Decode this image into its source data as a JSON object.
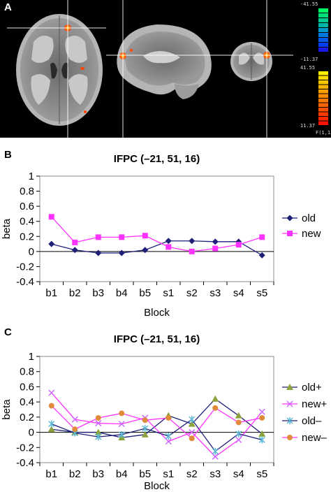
{
  "panel_a": {
    "letter": "A",
    "colorbar": {
      "neg_top_label": "-41.55",
      "neg_bottom_label": "-11.37",
      "pos_top_label": "41.55",
      "pos_bottom_label": "11.37",
      "stat_label": "F(1,13)",
      "neg_colors": [
        "#00ff66",
        "#00e07a",
        "#00c890",
        "#00b4a8",
        "#0096c8",
        "#0078dc",
        "#005ae6",
        "#003cf0",
        "#1a1ae6"
      ],
      "pos_colors": [
        "#fff000",
        "#ffdc00",
        "#ffc800",
        "#ffb400",
        "#ffa000",
        "#ff8c00",
        "#ff7800",
        "#ff6400",
        "#ff5000",
        "#ff3c00",
        "#ff2800",
        "#ff1400"
      ]
    }
  },
  "panel_b": {
    "letter": "B",
    "chart_data": {
      "type": "line",
      "title": "IFPC (–21, 51, 16)",
      "xlabel": "Block",
      "ylabel": "beta",
      "categories": [
        "b1",
        "b2",
        "b3",
        "b4",
        "b5",
        "s1",
        "s2",
        "s3",
        "s4",
        "s5"
      ],
      "ylim": [
        -0.4,
        1
      ],
      "yticks": [
        "1",
        "0.8",
        "0.6",
        "0.4",
        "0.2",
        "0",
        "-0.2",
        "-0.4"
      ],
      "grid": false,
      "legend": "right",
      "series": [
        {
          "name": "old",
          "color": "#1f1f7a",
          "marker": "diamond",
          "values": [
            0.1,
            0.02,
            -0.02,
            -0.02,
            0.02,
            0.14,
            0.14,
            0.13,
            0.13,
            -0.05
          ]
        },
        {
          "name": "new",
          "color": "#ff33ff",
          "marker": "square",
          "values": [
            0.46,
            0.12,
            0.19,
            0.19,
            0.21,
            0.06,
            0.0,
            0.04,
            0.09,
            0.19
          ]
        }
      ]
    }
  },
  "panel_c": {
    "letter": "C",
    "chart_data": {
      "type": "line",
      "title": "IFPC (–21, 51, 16)",
      "xlabel": "Block",
      "ylabel": "beta",
      "categories": [
        "b1",
        "b2",
        "b3",
        "b4",
        "b5",
        "s1",
        "s2",
        "s3",
        "s4",
        "s5"
      ],
      "ylim": [
        -0.4,
        1
      ],
      "yticks": [
        "1",
        "0.8",
        "0.6",
        "0.4",
        "0.2",
        "0",
        "-0.2",
        "-0.4"
      ],
      "grid": false,
      "legend": "right",
      "series": [
        {
          "name": "old+",
          "color": "#8aa33c",
          "line_color": "#1f1f7a",
          "marker": "triangle",
          "values": [
            0.04,
            0.0,
            0.0,
            -0.07,
            -0.03,
            0.22,
            0.11,
            0.44,
            0.22,
            -0.02
          ]
        },
        {
          "name": "new+",
          "color": "#cc66ff",
          "line_color": "#ff33ff",
          "marker": "x",
          "values": [
            0.52,
            0.17,
            0.12,
            0.11,
            0.19,
            -0.12,
            0.0,
            -0.32,
            -0.1,
            0.27
          ]
        },
        {
          "name": "old–",
          "color": "#5bb8d6",
          "line_color": "#1f1f7a",
          "marker": "star",
          "values": [
            0.11,
            -0.01,
            -0.06,
            -0.03,
            0.05,
            -0.05,
            0.17,
            -0.25,
            -0.02,
            -0.1
          ]
        },
        {
          "name": "new–",
          "color": "#e08a3c",
          "line_color": "#ff33ff",
          "marker": "circle",
          "values": [
            0.35,
            0.04,
            0.19,
            0.25,
            0.16,
            0.19,
            -0.08,
            0.32,
            0.13,
            0.19
          ]
        }
      ]
    }
  }
}
